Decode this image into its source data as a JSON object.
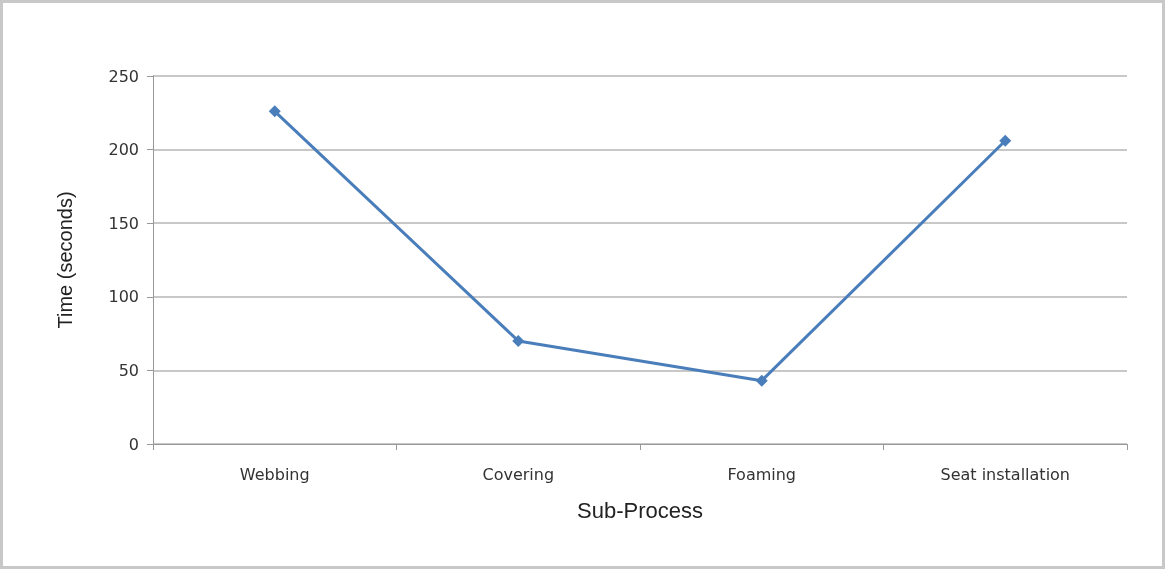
{
  "chart_data": {
    "type": "line",
    "xlabel": "Sub-Process",
    "ylabel": "Time (seconds)",
    "categories": [
      "Webbing",
      "Covering",
      "Foaming",
      "Seat installation"
    ],
    "series": [
      {
        "color": "#4a7ebb",
        "values": [
          226,
          70,
          43,
          206
        ]
      }
    ],
    "ylim": [
      0,
      250
    ],
    "yticks": [
      0,
      50,
      100,
      150,
      200,
      250
    ],
    "grid": "y",
    "marker": "diamond",
    "line_style": "solid"
  }
}
